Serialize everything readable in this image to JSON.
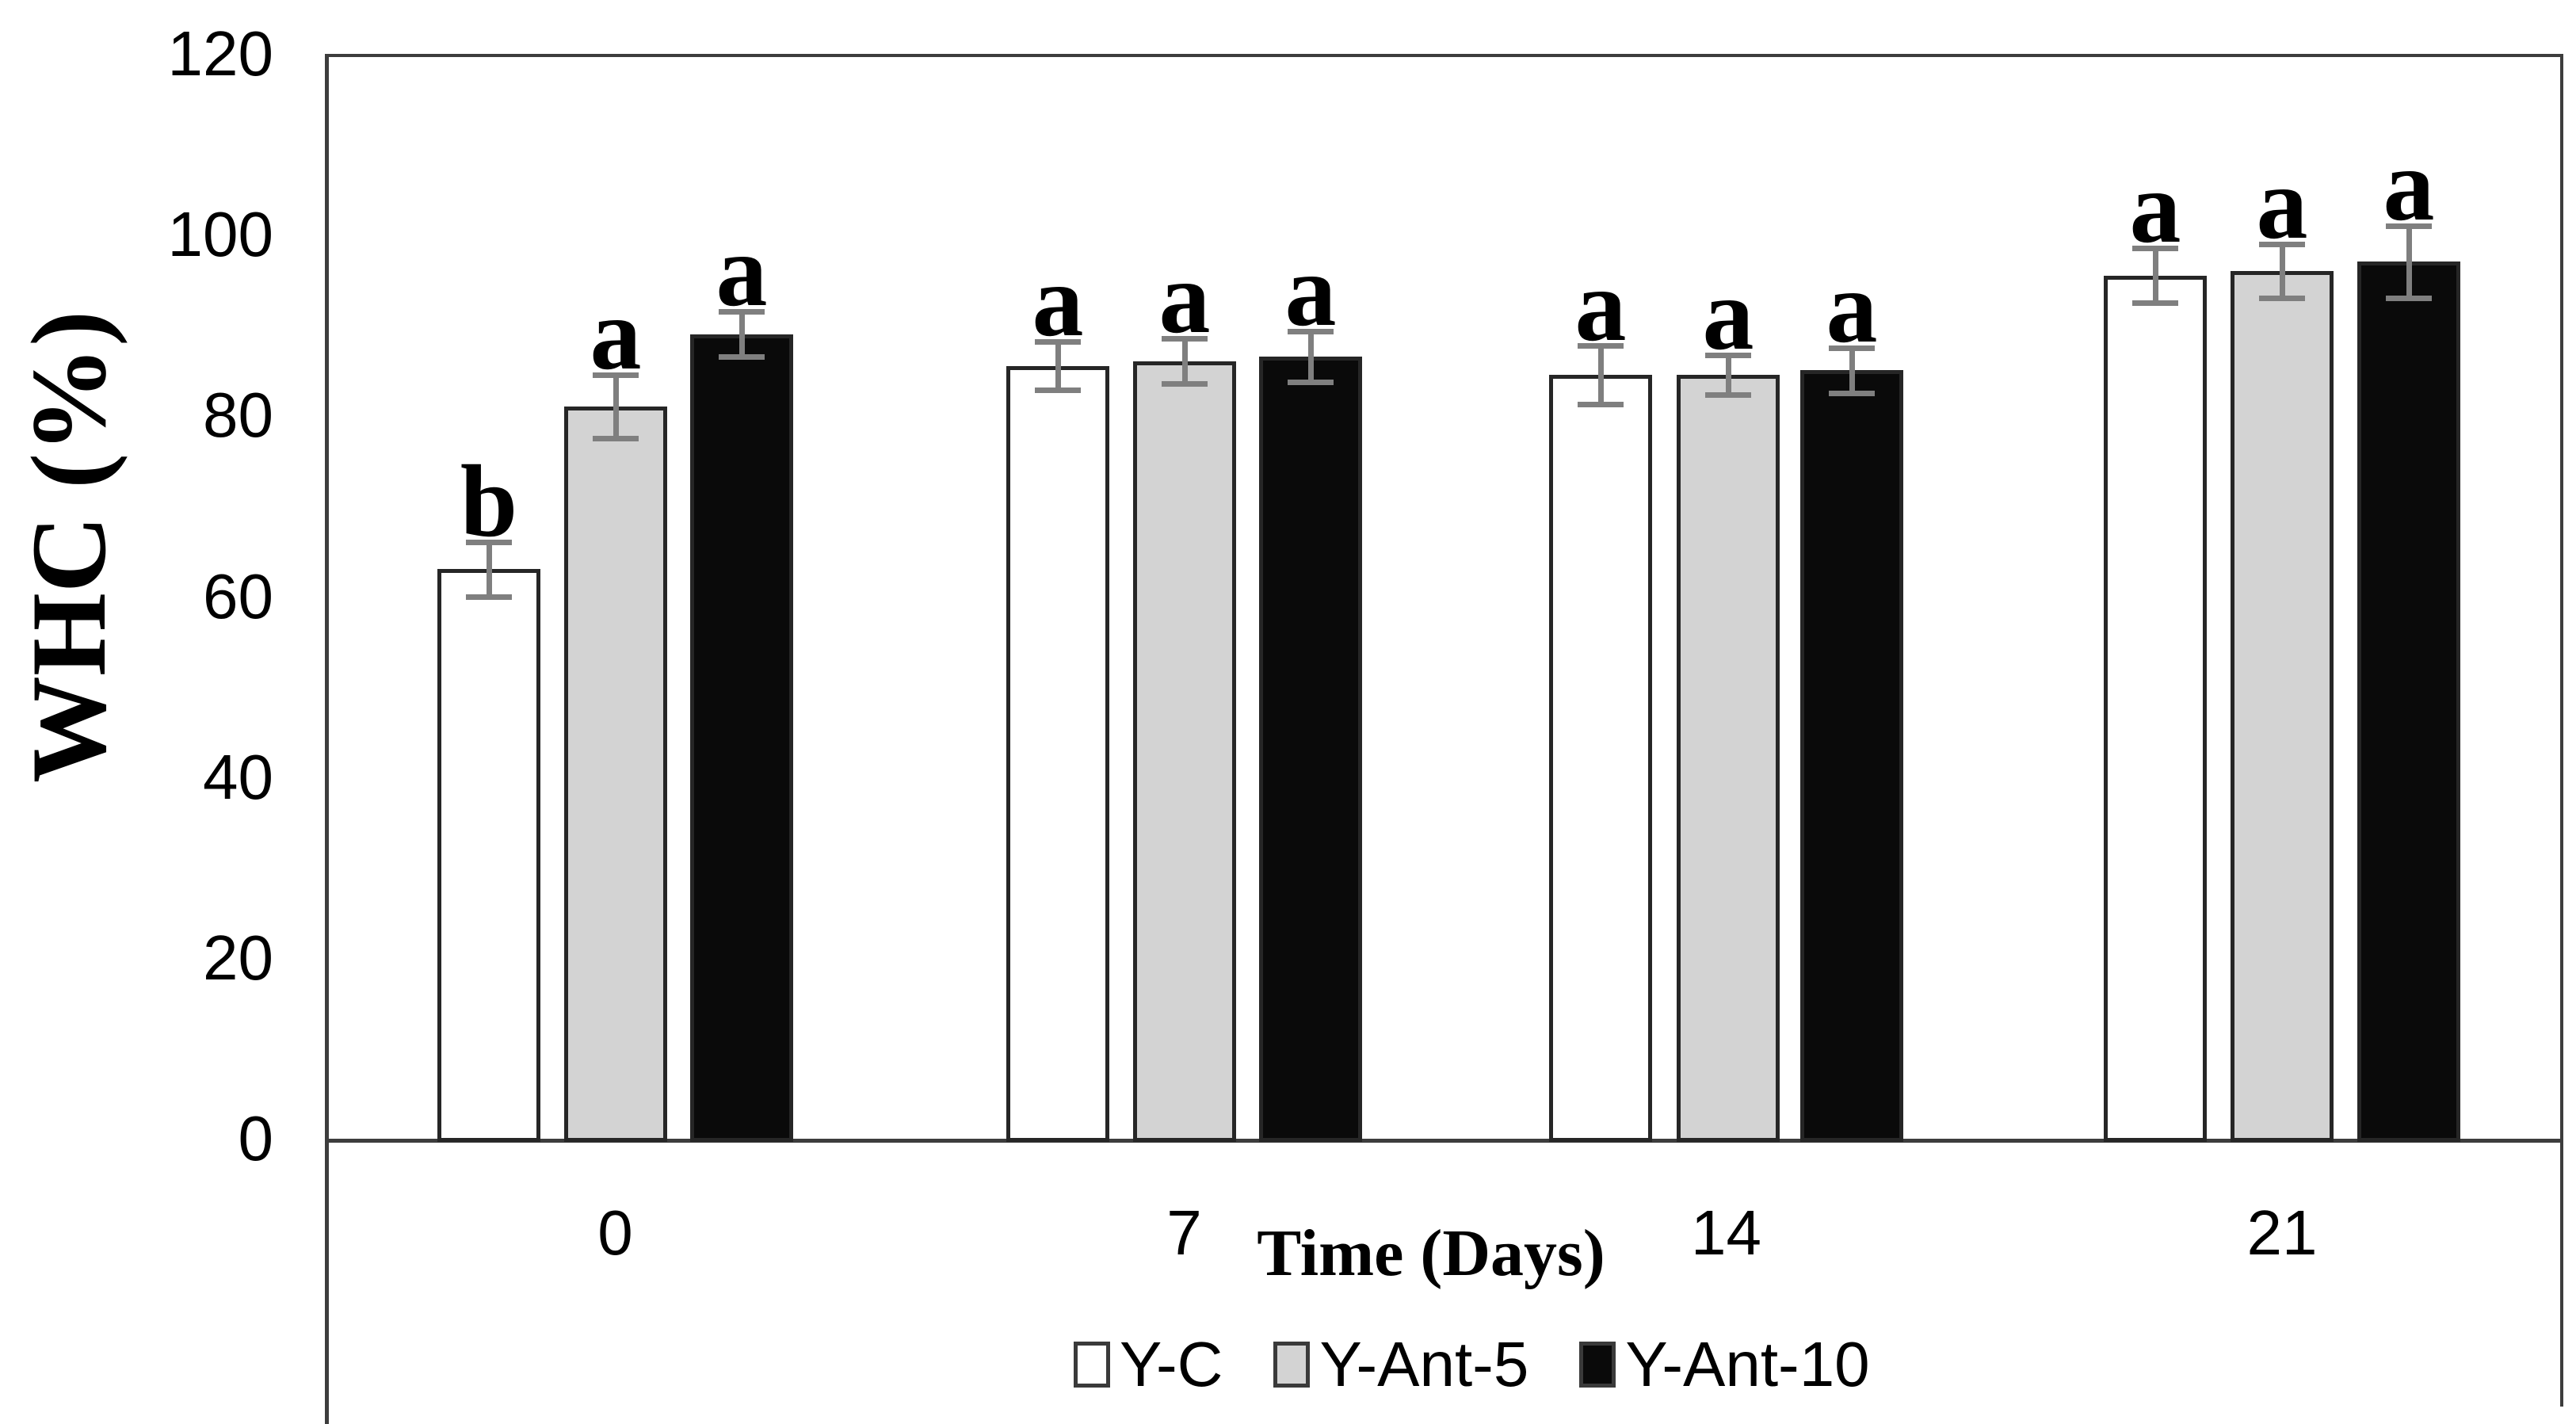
{
  "figure": {
    "ylabel": "WHC (%)",
    "xlabel": "Time (Days)"
  },
  "chart_data": {
    "type": "bar",
    "title": "",
    "xlabel": "Time (Days)",
    "ylabel": "WHC (%)",
    "categories": [
      "0",
      "7",
      "14",
      "21"
    ],
    "series": [
      {
        "name": "Y-C",
        "fill": "#ffffff",
        "values": [
          63,
          85.5,
          84.5,
          95.5
        ],
        "errors": [
          3,
          2.7,
          3.2,
          3
        ],
        "sig_letters": [
          "b",
          "a",
          "a",
          "a"
        ]
      },
      {
        "name": "Y-Ant-5",
        "fill": "#d3d3d3",
        "values": [
          81,
          86,
          84.5,
          96
        ],
        "errors": [
          3.5,
          2.5,
          2.2,
          3
        ],
        "sig_letters": [
          "a",
          "a",
          "a",
          "a"
        ]
      },
      {
        "name": "Y-Ant-10",
        "fill": "#0a0a0a",
        "values": [
          89,
          86.5,
          85,
          97
        ],
        "errors": [
          2.5,
          2.8,
          2.5,
          4
        ],
        "sig_letters": [
          "a",
          "a",
          "a",
          "a"
        ]
      }
    ],
    "yticks": [
      0,
      20,
      40,
      60,
      80,
      100,
      120
    ],
    "ylim": [
      0,
      120
    ],
    "grid": "off",
    "legend_position": "bottom",
    "error_bars": "yes"
  },
  "colors": {
    "axis": "#3d3d3d",
    "bar_border": "#262626",
    "error_bar": "#7f7f7f",
    "text": "#000000",
    "background": "#ffffff"
  }
}
